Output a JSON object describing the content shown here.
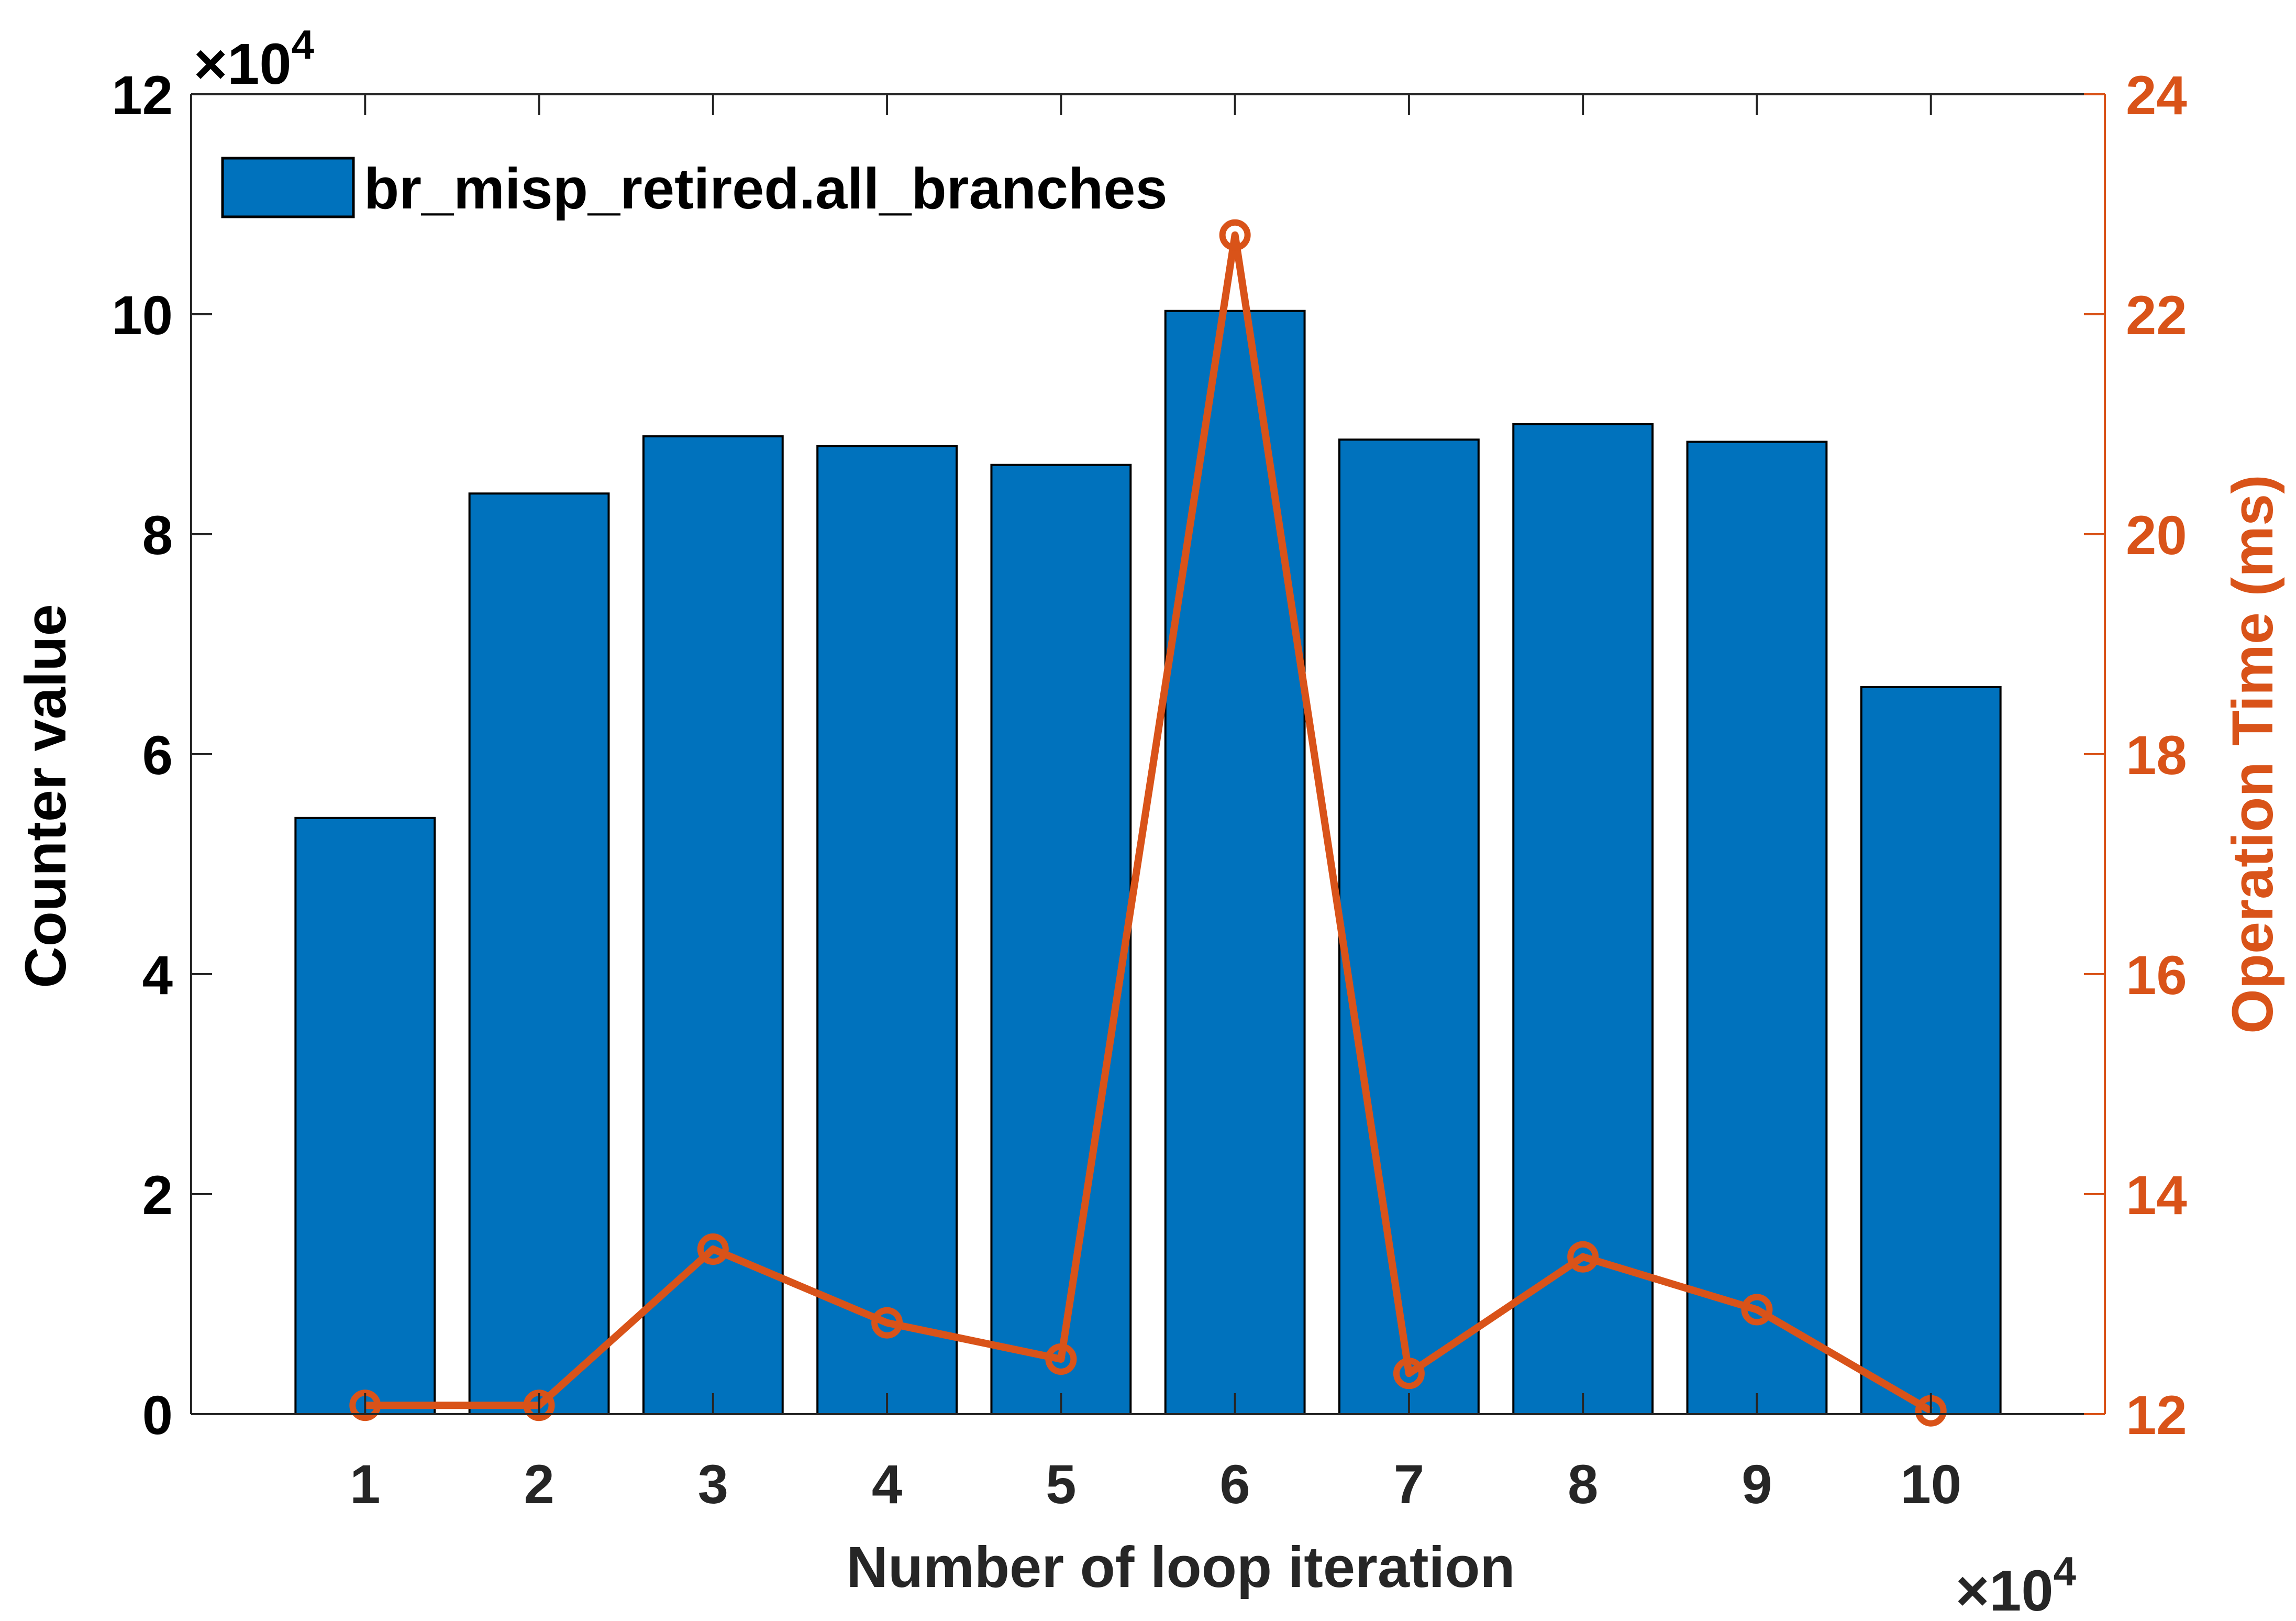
{
  "chart_data": {
    "type": "bar",
    "title": "",
    "xlabel": "Number of loop iteration",
    "ylabel": "Counter value",
    "y2label": "Operation Time (ms)",
    "x_exponent_label": "×10",
    "x_exponent_power": "4",
    "y_exponent_label": "×10",
    "y_exponent_power": "4",
    "x": [
      1,
      2,
      3,
      4,
      5,
      6,
      7,
      8,
      9,
      10
    ],
    "x_tick_labels": [
      "1",
      "2",
      "3",
      "4",
      "5",
      "6",
      "7",
      "8",
      "9",
      "10"
    ],
    "xlim": [
      0,
      11
    ],
    "ylim": [
      0,
      12
    ],
    "y_ticks": [
      0,
      2,
      4,
      6,
      8,
      10,
      12
    ],
    "y_tick_labels": [
      "0",
      "2",
      "4",
      "6",
      "8",
      "10",
      "12"
    ],
    "y2lim": [
      12,
      24
    ],
    "y2_ticks": [
      12,
      14,
      16,
      18,
      20,
      22,
      24
    ],
    "y2_tick_labels": [
      "12",
      "14",
      "16",
      "18",
      "20",
      "22",
      "24"
    ],
    "grid": false,
    "legend_position": "top-left",
    "series": [
      {
        "name": "br_misp_retired.all_branches",
        "type": "bar",
        "axis": "left",
        "color": "#0072BD",
        "values": [
          5.42,
          8.37,
          8.89,
          8.8,
          8.63,
          10.03,
          8.86,
          9.0,
          8.84,
          6.61
        ]
      },
      {
        "type": "line",
        "axis": "right",
        "color": "#D95319",
        "marker": "circle",
        "values": [
          12.08,
          12.08,
          13.5,
          12.83,
          12.5,
          22.72,
          12.37,
          13.43,
          12.95,
          12.03
        ]
      }
    ]
  },
  "colors": {
    "axis": "#262626",
    "right_axis": "#D95319",
    "bar": "#0072BD",
    "line": "#D95319"
  }
}
